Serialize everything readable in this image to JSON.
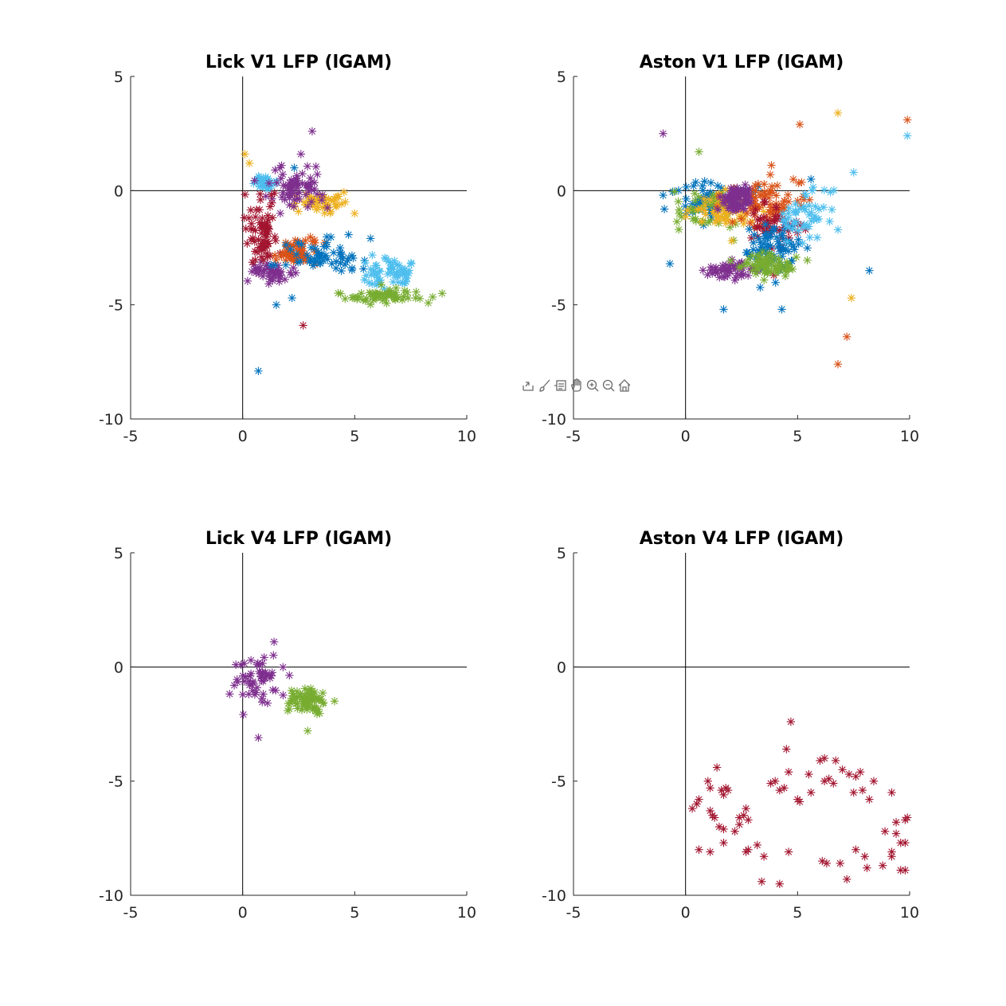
{
  "chart_data": [
    {
      "type": "scatter",
      "title": "Lick V1 LFP (lGAM)",
      "xlabel": "",
      "ylabel": "",
      "xlim": [
        -5,
        10
      ],
      "ylim": [
        -10,
        5
      ],
      "xticks": [
        "-5",
        "0",
        "5",
        "10"
      ],
      "yticks": [
        "-10",
        "-5",
        "0",
        "5"
      ],
      "grid": false,
      "marker": "asterisk",
      "clusters": [
        {
          "color": "#EDB120",
          "center": [
            3.4,
            -0.5
          ],
          "spread": [
            0.9,
            0.3
          ],
          "count": 50,
          "extra": [
            [
              0.1,
              1.6
            ],
            [
              0.3,
              1.2
            ],
            [
              5.0,
              -1.0
            ]
          ]
        },
        {
          "color": "#4DBEEE",
          "center": [
            1.0,
            0.35
          ],
          "spread": [
            0.35,
            0.18
          ],
          "count": 40,
          "extra": []
        },
        {
          "color": "#7E2F8E",
          "center": [
            2.3,
            0.1
          ],
          "spread": [
            1.0,
            0.6
          ],
          "count": 70,
          "extra": [
            [
              3.1,
              2.6
            ],
            [
              2.6,
              1.6
            ]
          ]
        },
        {
          "color": "#7E2F8E",
          "center": [
            1.3,
            -3.6
          ],
          "spread": [
            0.7,
            0.3
          ],
          "count": 45,
          "extra": []
        },
        {
          "color": "#A2142F",
          "center": [
            0.9,
            -1.8
          ],
          "spread": [
            0.6,
            1.0
          ],
          "count": 70,
          "extra": [
            [
              2.7,
              -5.9
            ]
          ]
        },
        {
          "color": "#D95319",
          "center": [
            2.4,
            -2.7
          ],
          "spread": [
            0.6,
            0.4
          ],
          "count": 70,
          "extra": []
        },
        {
          "color": "#0072BD",
          "center": [
            3.6,
            -2.8
          ],
          "spread": [
            1.3,
            0.5
          ],
          "count": 60,
          "extra": [
            [
              0.7,
              -7.9
            ],
            [
              1.5,
              -5.0
            ],
            [
              2.2,
              -4.7
            ],
            [
              2.3,
              1.0
            ]
          ]
        },
        {
          "color": "#4DBEEE",
          "center": [
            6.5,
            -3.6
          ],
          "spread": [
            0.8,
            0.5
          ],
          "count": 60,
          "extra": []
        },
        {
          "color": "#77AC30",
          "center": [
            6.3,
            -4.6
          ],
          "spread": [
            1.4,
            0.3
          ],
          "count": 60,
          "extra": [
            [
              8.9,
              -4.5
            ]
          ]
        }
      ]
    },
    {
      "type": "scatter",
      "title": "Aston V1 LFP (lGAM)",
      "xlabel": "",
      "ylabel": "",
      "xlim": [
        -5,
        10
      ],
      "ylim": [
        -10,
        5
      ],
      "xticks": [
        "-5",
        "0",
        "5",
        "10"
      ],
      "yticks": [
        "-10",
        "-5",
        "0",
        "5"
      ],
      "grid": false,
      "marker": "asterisk",
      "clusters": [
        {
          "color": "#0072BD",
          "center": [
            1.2,
            -0.5
          ],
          "spread": [
            1.0,
            0.6
          ],
          "count": 70,
          "extra": [
            [
              -1.0,
              -0.2
            ],
            [
              -0.7,
              -3.2
            ],
            [
              1.7,
              -5.2
            ],
            [
              4.3,
              -5.2
            ]
          ]
        },
        {
          "color": "#77AC30",
          "center": [
            1.0,
            -0.8
          ],
          "spread": [
            0.9,
            0.7
          ],
          "count": 40,
          "extra": [
            [
              0.6,
              1.7
            ],
            [
              -0.3,
              -1.7
            ]
          ]
        },
        {
          "color": "#EDB120",
          "center": [
            1.8,
            -0.9
          ],
          "spread": [
            1.1,
            0.6
          ],
          "count": 60,
          "extra": [
            [
              7.4,
              -4.7
            ],
            [
              6.8,
              3.4
            ]
          ]
        },
        {
          "color": "#D95319",
          "center": [
            3.5,
            -0.5
          ],
          "spread": [
            1.4,
            0.8
          ],
          "count": 80,
          "extra": [
            [
              9.9,
              3.1
            ],
            [
              6.8,
              -7.6
            ],
            [
              7.2,
              -6.4
            ],
            [
              5.1,
              2.9
            ]
          ]
        },
        {
          "color": "#7E2F8E",
          "center": [
            2.3,
            -0.4
          ],
          "spread": [
            0.4,
            0.4
          ],
          "count": 90,
          "extra": [
            [
              -1.0,
              2.5
            ]
          ]
        },
        {
          "color": "#7E2F8E",
          "center": [
            1.8,
            -3.5
          ],
          "spread": [
            0.9,
            0.3
          ],
          "count": 50,
          "extra": []
        },
        {
          "color": "#A2142F",
          "center": [
            4.0,
            -1.5
          ],
          "spread": [
            1.0,
            0.8
          ],
          "count": 50,
          "extra": []
        },
        {
          "color": "#0072BD",
          "center": [
            4.0,
            -2.6
          ],
          "spread": [
            0.9,
            0.7
          ],
          "count": 80,
          "extra": [
            [
              8.2,
              -3.5
            ],
            [
              5.6,
              0.5
            ]
          ]
        },
        {
          "color": "#4DBEEE",
          "center": [
            5.5,
            -1.0
          ],
          "spread": [
            0.9,
            0.8
          ],
          "count": 50,
          "extra": [
            [
              9.9,
              2.4
            ],
            [
              7.5,
              0.8
            ]
          ]
        },
        {
          "color": "#77AC30",
          "center": [
            3.8,
            -3.3
          ],
          "spread": [
            0.9,
            0.4
          ],
          "count": 70,
          "extra": []
        }
      ]
    },
    {
      "type": "scatter",
      "title": "Lick V4 LFP (lGAM)",
      "xlabel": "",
      "ylabel": "",
      "xlim": [
        -5,
        10
      ],
      "ylim": [
        -10,
        5
      ],
      "xticks": [
        "-5",
        "0",
        "5",
        "10"
      ],
      "yticks": [
        "-10",
        "-5",
        "0",
        "5"
      ],
      "grid": false,
      "marker": "asterisk",
      "clusters": [
        {
          "color": "#7E2F8E",
          "center": [
            0.7,
            -0.6
          ],
          "spread": [
            0.8,
            0.8
          ],
          "count": 55,
          "extra": [
            [
              1.4,
              1.1
            ],
            [
              0.7,
              -3.1
            ],
            [
              -0.3,
              0.1
            ]
          ]
        },
        {
          "color": "#77AC30",
          "center": [
            2.8,
            -1.5
          ],
          "spread": [
            0.6,
            0.45
          ],
          "count": 70,
          "extra": [
            [
              2.9,
              -2.8
            ],
            [
              4.1,
              -1.5
            ]
          ]
        }
      ]
    },
    {
      "type": "scatter",
      "title": "Aston V4 LFP (lGAM)",
      "xlabel": "",
      "ylabel": "",
      "xlim": [
        -5,
        10
      ],
      "ylim": [
        -10,
        5
      ],
      "xticks": [
        "-5",
        "0",
        "5",
        "10"
      ],
      "yticks": [
        "-10",
        "-5",
        "0",
        "5"
      ],
      "grid": false,
      "marker": "asterisk",
      "points_color": "#A2142F",
      "points": [
        [
          4.7,
          -2.4
        ],
        [
          4.5,
          -3.6
        ],
        [
          1.4,
          -4.4
        ],
        [
          6.2,
          -4.0
        ],
        [
          6.0,
          -4.1
        ],
        [
          6.7,
          -4.1
        ],
        [
          7.0,
          -4.5
        ],
        [
          7.3,
          -4.7
        ],
        [
          7.8,
          -4.6
        ],
        [
          8.4,
          -5.0
        ],
        [
          9.2,
          -5.5
        ],
        [
          5.5,
          -4.7
        ],
        [
          6.4,
          -4.9
        ],
        [
          6.6,
          -5.1
        ],
        [
          7.6,
          -4.8
        ],
        [
          4.6,
          -4.6
        ],
        [
          3.8,
          -5.1
        ],
        [
          4.0,
          -5.0
        ],
        [
          4.2,
          -5.4
        ],
        [
          4.4,
          -5.3
        ],
        [
          5.0,
          -5.8
        ],
        [
          5.6,
          -5.5
        ],
        [
          6.2,
          -5.0
        ],
        [
          7.5,
          -5.5
        ],
        [
          7.9,
          -5.4
        ],
        [
          8.2,
          -5.8
        ],
        [
          0.5,
          -6.0
        ],
        [
          0.6,
          -5.8
        ],
        [
          0.3,
          -6.2
        ],
        [
          1.0,
          -5.0
        ],
        [
          1.1,
          -5.3
        ],
        [
          1.6,
          -5.4
        ],
        [
          1.8,
          -5.3
        ],
        [
          1.9,
          -5.4
        ],
        [
          1.1,
          -6.3
        ],
        [
          1.2,
          -6.5
        ],
        [
          1.3,
          -6.6
        ],
        [
          1.5,
          -7.0
        ],
        [
          1.7,
          -7.1
        ],
        [
          2.2,
          -7.2
        ],
        [
          2.4,
          -6.6
        ],
        [
          2.6,
          -6.5
        ],
        [
          2.7,
          -6.2
        ],
        [
          2.8,
          -6.7
        ],
        [
          2.4,
          -6.9
        ],
        [
          1.7,
          -7.7
        ],
        [
          0.6,
          -8.0
        ],
        [
          1.1,
          -8.1
        ],
        [
          2.7,
          -8.1
        ],
        [
          2.8,
          -8.0
        ],
        [
          3.2,
          -7.8
        ],
        [
          3.5,
          -8.3
        ],
        [
          4.6,
          -8.1
        ],
        [
          3.4,
          -9.4
        ],
        [
          4.2,
          -9.5
        ],
        [
          6.1,
          -8.5
        ],
        [
          6.3,
          -8.6
        ],
        [
          6.9,
          -8.6
        ],
        [
          7.6,
          -8.0
        ],
        [
          8.0,
          -8.3
        ],
        [
          8.1,
          -8.8
        ],
        [
          8.8,
          -8.7
        ],
        [
          9.2,
          -8.3
        ],
        [
          9.2,
          -8.1
        ],
        [
          9.6,
          -8.9
        ],
        [
          9.8,
          -8.9
        ],
        [
          9.6,
          -7.7
        ],
        [
          9.8,
          -7.7
        ],
        [
          9.4,
          -7.3
        ],
        [
          8.9,
          -7.2
        ],
        [
          9.4,
          -6.8
        ],
        [
          9.8,
          -6.7
        ],
        [
          9.9,
          -6.6
        ],
        [
          7.2,
          -9.3
        ],
        [
          5.1,
          -5.9
        ],
        [
          1.7,
          -5.6
        ]
      ]
    }
  ],
  "toolbar": {
    "icons": [
      "export-icon",
      "brush-icon",
      "datatip-icon",
      "pan-icon",
      "zoom-in-icon",
      "zoom-out-icon",
      "home-icon"
    ]
  }
}
